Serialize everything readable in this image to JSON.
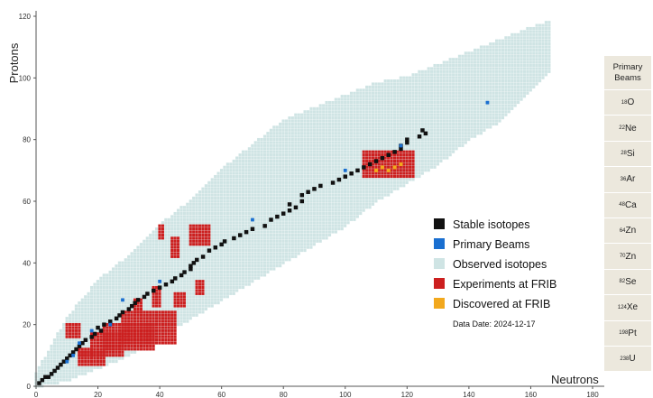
{
  "chart_data": {
    "type": "scatter",
    "title": "",
    "xlabel": "Neutrons",
    "ylabel": "Protons",
    "xlim": [
      0,
      180
    ],
    "ylim": [
      0,
      120
    ],
    "x_ticks": [
      0,
      20,
      40,
      60,
      80,
      100,
      120,
      140,
      160,
      180
    ],
    "y_ticks": [
      0,
      20,
      40,
      60,
      80,
      100,
      120
    ],
    "grid": false,
    "legend_position": "right",
    "series": [
      {
        "name": "Stable isotopes",
        "color": "#111111",
        "points": [
          [
            1,
            1
          ],
          [
            2,
            2
          ],
          [
            3,
            3
          ],
          [
            4,
            3
          ],
          [
            5,
            4
          ],
          [
            6,
            5
          ],
          [
            7,
            6
          ],
          [
            8,
            7
          ],
          [
            9,
            8
          ],
          [
            10,
            9
          ],
          [
            11,
            10
          ],
          [
            12,
            11
          ],
          [
            13,
            12
          ],
          [
            14,
            13
          ],
          [
            15,
            14
          ],
          [
            16,
            15
          ],
          [
            18,
            16
          ],
          [
            19,
            17
          ],
          [
            21,
            18
          ],
          [
            20,
            19
          ],
          [
            22,
            20
          ],
          [
            24,
            21
          ],
          [
            26,
            22
          ],
          [
            27,
            23
          ],
          [
            28,
            24
          ],
          [
            30,
            25
          ],
          [
            31,
            26
          ],
          [
            32,
            27
          ],
          [
            33,
            28
          ],
          [
            35,
            29
          ],
          [
            36,
            30
          ],
          [
            38,
            31
          ],
          [
            40,
            32
          ],
          [
            42,
            33
          ],
          [
            44,
            34
          ],
          [
            45,
            35
          ],
          [
            47,
            36
          ],
          [
            48,
            37
          ],
          [
            50,
            38
          ],
          [
            50,
            39
          ],
          [
            51,
            40
          ],
          [
            52,
            41
          ],
          [
            54,
            42
          ],
          [
            56,
            44
          ],
          [
            58,
            45
          ],
          [
            60,
            46
          ],
          [
            61,
            47
          ],
          [
            64,
            48
          ],
          [
            66,
            49
          ],
          [
            68,
            50
          ],
          [
            70,
            51
          ],
          [
            74,
            52
          ],
          [
            76,
            54
          ],
          [
            78,
            55
          ],
          [
            80,
            56
          ],
          [
            82,
            57
          ],
          [
            84,
            58
          ],
          [
            82,
            59
          ],
          [
            86,
            60
          ],
          [
            86,
            62
          ],
          [
            88,
            63
          ],
          [
            90,
            64
          ],
          [
            92,
            65
          ],
          [
            96,
            66
          ],
          [
            98,
            67
          ],
          [
            100,
            68
          ],
          [
            102,
            69
          ],
          [
            104,
            70
          ],
          [
            106,
            71
          ],
          [
            108,
            72
          ],
          [
            110,
            73
          ],
          [
            112,
            74
          ],
          [
            114,
            75
          ],
          [
            116,
            76
          ],
          [
            118,
            77
          ],
          [
            118,
            78
          ],
          [
            120,
            79
          ],
          [
            120,
            80
          ],
          [
            124,
            81
          ],
          [
            126,
            82
          ],
          [
            125,
            83
          ]
        ]
      },
      {
        "name": "Primary Beams",
        "color": "#1a6fd0",
        "points": [
          [
            10,
            8
          ],
          [
            12,
            10
          ],
          [
            14,
            14
          ],
          [
            18,
            18
          ],
          [
            28,
            28
          ],
          [
            24,
            20
          ],
          [
            40,
            34
          ],
          [
            70,
            54
          ],
          [
            100,
            70
          ],
          [
            118,
            78
          ],
          [
            146,
            92
          ]
        ]
      },
      {
        "name": "Observed isotopes",
        "color": "#cfe4e4",
        "band": [
          [
            0,
            0,
            4
          ],
          [
            10,
            2,
            22
          ],
          [
            20,
            6,
            34
          ],
          [
            30,
            10,
            42
          ],
          [
            40,
            16,
            52
          ],
          [
            50,
            22,
            60
          ],
          [
            60,
            28,
            70
          ],
          [
            70,
            34,
            78
          ],
          [
            80,
            40,
            86
          ],
          [
            90,
            46,
            90
          ],
          [
            100,
            52,
            94
          ],
          [
            110,
            60,
            98
          ],
          [
            120,
            66,
            100
          ],
          [
            130,
            72,
            104
          ],
          [
            140,
            80,
            108
          ],
          [
            150,
            86,
            112
          ],
          [
            160,
            96,
            116
          ],
          [
            166,
            102,
            118
          ]
        ]
      },
      {
        "name": "Experiments at FRIB",
        "color": "#cc1f1f",
        "regions": [
          [
            10,
            14,
            16,
            20
          ],
          [
            14,
            18,
            10,
            12
          ],
          [
            14,
            22,
            7,
            11
          ],
          [
            18,
            28,
            10,
            17
          ],
          [
            22,
            38,
            12,
            20
          ],
          [
            28,
            45,
            14,
            24
          ],
          [
            44,
            46,
            42,
            48
          ],
          [
            40,
            41,
            48,
            52
          ],
          [
            50,
            56,
            46,
            52
          ],
          [
            45,
            48,
            26,
            30
          ],
          [
            52,
            54,
            30,
            34
          ],
          [
            32,
            34,
            24,
            28
          ],
          [
            38,
            40,
            26,
            32
          ],
          [
            106,
            122,
            68,
            76
          ]
        ]
      },
      {
        "name": "Discovered at FRIB",
        "color": "#f2a81d",
        "points": [
          [
            110,
            70
          ],
          [
            112,
            71
          ],
          [
            114,
            70
          ],
          [
            116,
            71
          ],
          [
            118,
            72
          ]
        ]
      }
    ],
    "annotations": [
      "Data Date: 2024-12-17"
    ]
  },
  "legend": {
    "items": [
      {
        "label": "Stable isotopes",
        "color": "#111111"
      },
      {
        "label": "Primary Beams",
        "color": "#1a6fd0"
      },
      {
        "label": "Observed isotopes",
        "color": "#cfe4e4"
      },
      {
        "label": "Experiments at FRIB",
        "color": "#cc1f1f"
      },
      {
        "label": "Discovered at FRIB",
        "color": "#f2a81d"
      }
    ],
    "date": "Data Date: 2024-12-17"
  },
  "beams": {
    "title_line1": "Primary",
    "title_line2": "Beams",
    "items": [
      {
        "mass": "18",
        "symbol": "O"
      },
      {
        "mass": "22",
        "symbol": "Ne"
      },
      {
        "mass": "28",
        "symbol": "Si"
      },
      {
        "mass": "36",
        "symbol": "Ar"
      },
      {
        "mass": "48",
        "symbol": "Ca"
      },
      {
        "mass": "64",
        "symbol": "Zn"
      },
      {
        "mass": "70",
        "symbol": "Zn"
      },
      {
        "mass": "82",
        "symbol": "Se"
      },
      {
        "mass": "124",
        "symbol": "Xe"
      },
      {
        "mass": "198",
        "symbol": "Pt"
      },
      {
        "mass": "238",
        "symbol": "U"
      }
    ]
  }
}
